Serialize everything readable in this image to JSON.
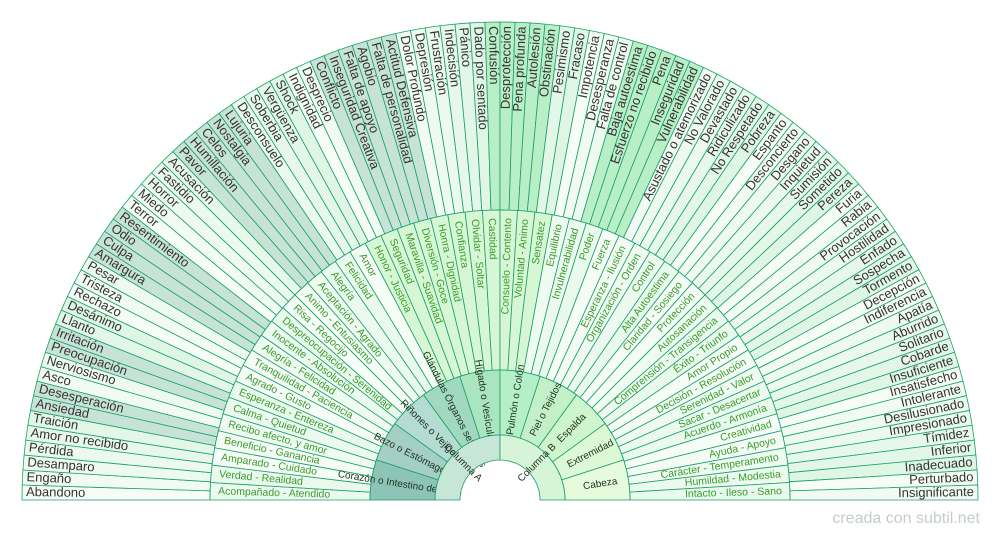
{
  "footer": "creada con subtil.net",
  "outer_left": [
    "Abandono",
    "Engaño",
    "Desamparo",
    "Pérdida",
    "Amor no recibido",
    "Traición",
    "Ansiedad",
    "Desesperación",
    "Asco",
    "Nerviosismo",
    "Preocupación",
    "Irritación",
    "Llanto",
    "Desánimo",
    "Rechazo",
    "Tristeza",
    "Pesar",
    "Amargura",
    "Culpa",
    "Odio",
    "Resentimiento",
    "Terror",
    "Miedo",
    "Horror",
    "Fastidio",
    "Acusación",
    "Pavor",
    "Humillación",
    "Celos",
    "Nostalgia",
    "Lujuria",
    "Desconsuelo",
    "Soberbia",
    "Vergüenza",
    "Shock",
    "Indignidad",
    "Desprecio",
    "Conflicto",
    "Inseguridad Creativa",
    "Falta de apoyo",
    "Agobio",
    "Falta de personalidad",
    "Actitud Defensiva",
    "Dolor Profundo",
    "Depresión",
    "Frustración",
    "Indecisión",
    "Pánico",
    "Dado por sentado"
  ],
  "outer_right": [
    "Confusión",
    "Desprotección",
    "Pena profunda",
    "Autolesión",
    "Obstinación",
    "Pesimismo",
    "Fracaso",
    "Impotencia",
    "Desesperanza",
    "Falta de control",
    "Baja autoestima",
    "Esfuerzo no recibido",
    "Pena",
    "Inseguridad",
    "Vulnerabilidad",
    "Asustado o atemorizado",
    "No Valorado",
    "Devastado",
    "Ridiculizado",
    "No Respetado",
    "Pobreza",
    "Espanto",
    "Desconcierto",
    "Desgano",
    "Inquietud",
    "Sumisión",
    "Sometido",
    "Pereza",
    "Furia",
    "Rabia",
    "Provocación",
    "Hostilidad",
    "Enfado",
    "Sospecha",
    "Tormento",
    "Decepción",
    "Indiferencia",
    "Apatía",
    "Aburrido",
    "Solitario",
    "Cobarde",
    "Insuficiente",
    "Insatisfecho",
    "Intolerante",
    "Desilusionado",
    "Impresionado",
    "Tímidez",
    "Inferior",
    "Inadecuado",
    "Perturbado",
    "Insignificante"
  ],
  "middle_left": [
    "Acompañado - Atendido",
    "Verdad - Realidad",
    "Amparado - Cuidado",
    "Beneficio - Ganancia",
    "Recibo afecto, y amor",
    "Calma - Quietud",
    "Esperanza - Entereza",
    "Agrado - Gusto",
    "Tranquilidad - Paciencia",
    "Alegría - Felicidad",
    "Inocente - Absolución",
    "Despreocupación - Serenidad",
    "Risa - Regocijo",
    "Animo - Entusiasmo",
    "Aceptación - Agrado",
    "Alegría",
    "Felicidad",
    "Amor",
    "Honor - Justicia",
    "Seguridad",
    "Maravilla - Suavidad",
    "Diversión - Goce",
    "Honra - Dignidad",
    "Confianza",
    "Olvidar - Soltar",
    "Castidad"
  ],
  "middle_right": [
    "Consuelo - Contento",
    "Voluntad - Animo",
    "Sensatez",
    "Equilibrio",
    "Invulnerabilidad",
    "Poder",
    "Fuerza",
    "Esperanza - Ilusión",
    "Organización - Orden",
    "Control",
    "Alta Autoestima",
    "Claridad - Sosiego",
    "Protección",
    "Autosanación",
    "Comprensión - Transigencia",
    "Éxito - Triunfo",
    "Amor Propio",
    "Decisión - Resolución",
    "Serenidad - Valor",
    "Sacar - Desacertar",
    "Acuerdo - Armonía",
    "Creatividad",
    "Ayuda - Apoyo",
    "Carácter - Temperamento",
    "Humildad - Modestia",
    "Intacto - Ileso - Sano"
  ],
  "organs": [
    "Corazón o Intestino delgado",
    "Bazo o Estómago",
    "Riñones o Vejiga",
    "Glándulas Órganos sexuales",
    "Hígado o Vesícula",
    "Pulmón o Colón",
    "Piel o Tejidos",
    "Espalda",
    "Extremidad",
    "Cabeza"
  ],
  "columns": [
    "Columna A",
    "Columna B"
  ],
  "highlight_outer_left": [
    6,
    7,
    10,
    11,
    17,
    18,
    19,
    20,
    26,
    27,
    28,
    29,
    30,
    37,
    38,
    39,
    40,
    41,
    42
  ],
  "highlight_outer_right": [
    0,
    1,
    2,
    3,
    4,
    10,
    11,
    12,
    13,
    14
  ]
}
